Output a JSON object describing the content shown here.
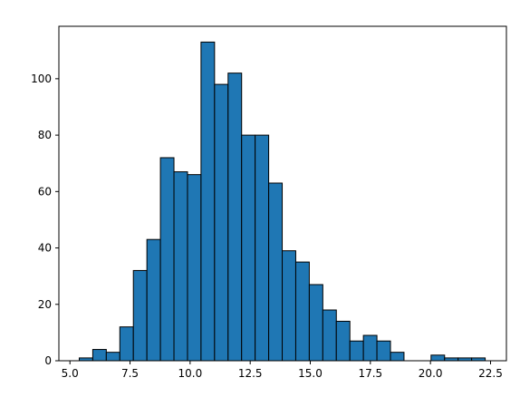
{
  "chart_data": {
    "type": "histogram",
    "title": "",
    "xlabel": "",
    "ylabel": "",
    "bar_color": "#1f77b4",
    "edge_color": "#000000",
    "xlim": [
      4.54,
      23.16
    ],
    "ylim": [
      0,
      118.6
    ],
    "x_ticks": [
      5.0,
      7.5,
      10.0,
      12.5,
      15.0,
      17.5,
      20.0,
      22.5
    ],
    "x_tick_labels": [
      "5.0",
      "7.5",
      "10.0",
      "12.5",
      "15.0",
      "17.5",
      "20.0",
      "22.5"
    ],
    "y_ticks": [
      0,
      20,
      40,
      60,
      80,
      100
    ],
    "y_tick_labels": [
      "0",
      "20",
      "40",
      "60",
      "80",
      "100"
    ],
    "bin_edges": [
      5.387,
      5.95,
      6.513,
      7.076,
      7.639,
      8.202,
      8.765,
      9.328,
      9.891,
      10.454,
      11.017,
      11.58,
      12.143,
      12.706,
      13.269,
      13.832,
      14.395,
      14.958,
      15.521,
      16.084,
      16.647,
      17.21,
      17.773,
      18.336,
      18.899,
      19.462,
      20.025,
      20.588,
      21.151,
      21.714,
      22.277
    ],
    "counts": [
      1,
      4,
      3,
      12,
      32,
      43,
      72,
      67,
      66,
      113,
      98,
      102,
      80,
      80,
      63,
      39,
      35,
      27,
      18,
      14,
      7,
      9,
      7,
      3,
      0,
      0,
      2,
      1,
      1,
      1
    ]
  }
}
